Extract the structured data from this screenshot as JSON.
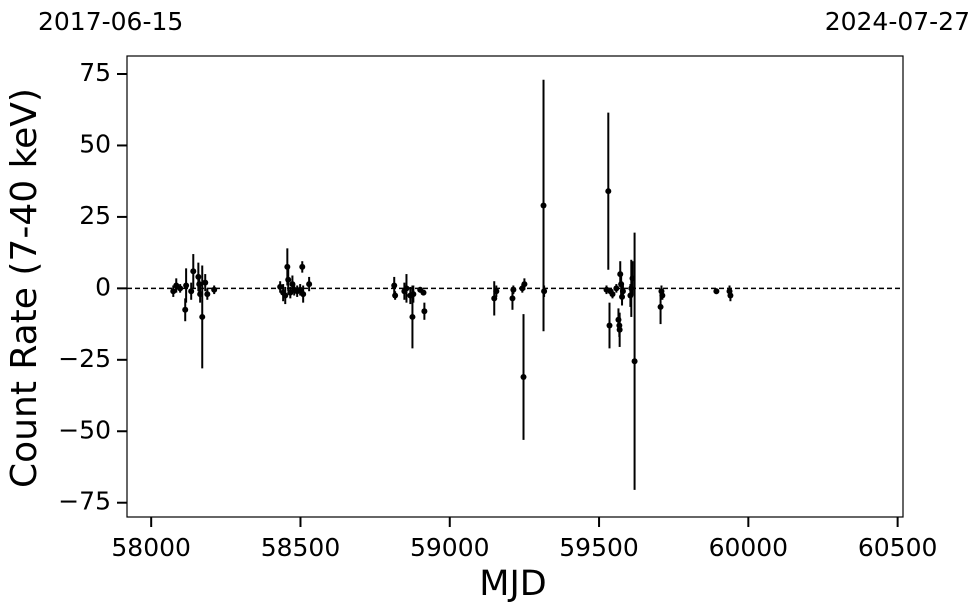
{
  "chart_data": {
    "type": "errorbar-scatter",
    "xlabel": "MJD",
    "ylabel": "Count Rate (7-40 keV)",
    "date_labels": [
      "2017-06-15",
      "2024-07-27"
    ],
    "xlim": [
      57919,
      60518
    ],
    "ylim": [
      -80,
      81.3
    ],
    "xticks": [
      58000,
      58500,
      59000,
      59500,
      60000,
      60500
    ],
    "yticks": [
      {
        "value": -75,
        "label": "−75"
      },
      {
        "value": -50,
        "label": "−50"
      },
      {
        "value": -25,
        "label": "−25"
      },
      0,
      25,
      50,
      75
    ],
    "reference_line": 0,
    "color": "#000000",
    "series": [
      {
        "name": "data",
        "color": "#000000",
        "x": [
          58074,
          58084,
          58097,
          58114,
          58117,
          58134,
          58141,
          58158,
          58161,
          58164,
          58171,
          58181,
          58188,
          58211,
          58432,
          58442,
          58449,
          58456,
          58459,
          58466,
          58473,
          58479,
          58489,
          58499,
          58506,
          58509,
          58529,
          58814,
          58817,
          58848,
          58855,
          58868,
          58875,
          58878,
          58901,
          58912,
          58915,
          59149,
          59156,
          59210,
          59213,
          59243,
          59247,
          59250,
          59314,
          59316,
          59525,
          59531,
          59535,
          59538,
          59545,
          59558,
          59565,
          59568,
          59569,
          59571,
          59574,
          59577,
          59580,
          59605,
          59608,
          59612,
          59619,
          59706,
          59709,
          59712,
          59893,
          59937,
          59940
        ],
        "values": [
          -1,
          1,
          0,
          -7.5,
          1,
          -1,
          6,
          4,
          1.5,
          -2,
          -10,
          2,
          -2,
          -0.5,
          0.5,
          -1.5,
          -2.5,
          7.5,
          3,
          -1.5,
          1.5,
          -0.5,
          -1,
          -0.5,
          7.5,
          -2,
          1.5,
          1,
          -2.5,
          -1,
          0,
          -2.5,
          -10,
          -2,
          -0.5,
          -1.5,
          -8,
          -3.5,
          -1,
          -3.5,
          -0.5,
          0,
          -31,
          1.5,
          29,
          -1,
          -0.5,
          34,
          -13,
          -1,
          -2,
          0,
          -11,
          -13,
          -14.5,
          5,
          1.5,
          -3,
          -1,
          -2.5,
          0,
          3.5,
          -25.5,
          -6.5,
          -1,
          -2.5,
          -1,
          -1,
          -2.5
        ],
        "errors": [
          2,
          2.5,
          1.5,
          4,
          6,
          3,
          6,
          5,
          3,
          3,
          18,
          3,
          2,
          1.5,
          2,
          3,
          3,
          6.5,
          4,
          2,
          3,
          2,
          2,
          2,
          2,
          3,
          2.5,
          3,
          1.5,
          3,
          5,
          3,
          11,
          3,
          1,
          1,
          3,
          6,
          2,
          4,
          1.5,
          1.5,
          22,
          2,
          44,
          2,
          1.5,
          27.5,
          8,
          1,
          1.5,
          1.5,
          4,
          4,
          6,
          4.5,
          4,
          3,
          2,
          4,
          10,
          6,
          45,
          6,
          2,
          1.5,
          1,
          2,
          2
        ]
      }
    ]
  }
}
